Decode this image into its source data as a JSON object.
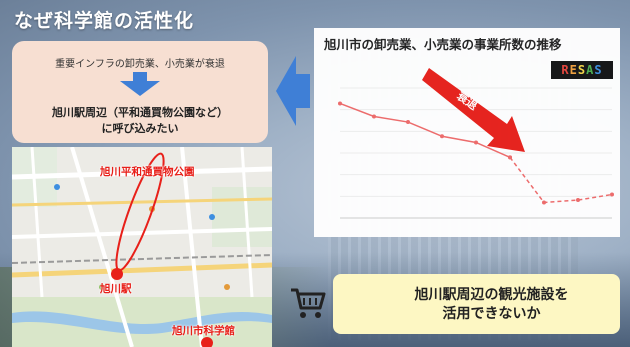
{
  "slide": {
    "title": "なぜ科学館の活性化"
  },
  "problem_box": {
    "line1": "重要インフラの卸売業、小売業が衰退",
    "line2a": "旭川駅周辺（平和通買物公園など）",
    "line2b": "に呼び込みたい"
  },
  "chart": {
    "heading": "旭川市の卸売業、小売業の事業所数の推移",
    "logo": {
      "letters": [
        "R",
        "E",
        "S",
        "A",
        "S"
      ],
      "colors": [
        "#e8453c",
        "#f2a03d",
        "#f5d547",
        "#4caf50",
        "#3d8fe0"
      ]
    },
    "arrow_label": "衰退",
    "arrow_color": "#e8201a",
    "line_color": "#ef6a6a"
  },
  "chart_data": {
    "type": "line",
    "title": "旭川市の卸売業、小売業の事業所数の推移",
    "x": [
      1,
      2,
      3,
      4,
      5,
      6,
      7,
      8,
      9
    ],
    "series": [
      {
        "values": [
          5250,
          5040,
          4950,
          4720,
          4620,
          4380,
          null,
          null,
          null
        ]
      },
      {
        "values": [
          null,
          null,
          null,
          null,
          null,
          4380,
          3650,
          3690,
          3780
        ]
      }
    ],
    "ylim": [
      3400,
      5500
    ],
    "grid": true
  },
  "map": {
    "label_park": "旭川平和通買物公園",
    "label_station": "旭川駅",
    "label_museum": "旭川市科学館",
    "marker_color": "#e8201a"
  },
  "solution_box": {
    "line1": "旭川駅周辺の観光施設を",
    "line2": "活用できないか"
  }
}
